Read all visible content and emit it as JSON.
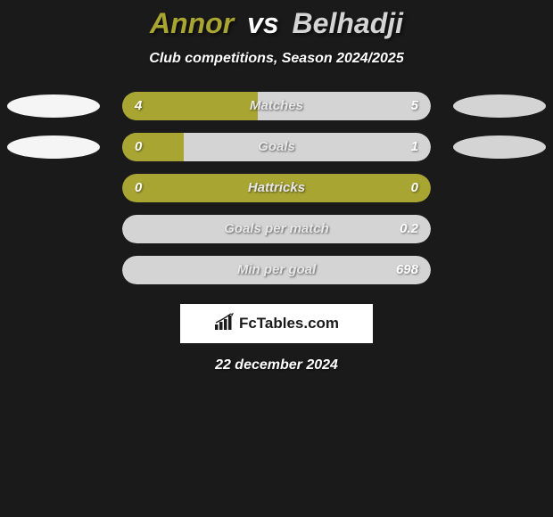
{
  "title": {
    "player1": "Annor",
    "vs": "vs",
    "player2": "Belhadji",
    "player1_color": "#a8a532",
    "player2_color": "#d4d4d4",
    "vs_color": "#ffffff"
  },
  "subtitle": "Club competitions, Season 2024/2025",
  "colors": {
    "background": "#1a1a1a",
    "p1_bar": "#a8a532",
    "p2_bar": "#d4d4d4",
    "p1_ellipse": "#f5f5f5",
    "p2_ellipse": "#d4d4d4",
    "bar_radius": 16
  },
  "stats": [
    {
      "label": "Matches",
      "left_value": "4",
      "right_value": "5",
      "left_pct": 44,
      "right_pct": 56,
      "show_left_ellipse": true,
      "show_right_ellipse": true
    },
    {
      "label": "Goals",
      "left_value": "0",
      "right_value": "1",
      "left_pct": 20,
      "right_pct": 80,
      "show_left_ellipse": true,
      "show_right_ellipse": true
    },
    {
      "label": "Hattricks",
      "left_value": "0",
      "right_value": "0",
      "left_pct": 100,
      "right_pct": 0,
      "show_left_ellipse": false,
      "show_right_ellipse": false
    },
    {
      "label": "Goals per match",
      "left_value": "",
      "right_value": "0.2",
      "left_pct": 0,
      "right_pct": 100,
      "show_left_ellipse": false,
      "show_right_ellipse": false
    },
    {
      "label": "Min per goal",
      "left_value": "",
      "right_value": "698",
      "left_pct": 0,
      "right_pct": 100,
      "show_left_ellipse": false,
      "show_right_ellipse": false
    }
  ],
  "logo": {
    "text": "FcTables.com"
  },
  "date": "22 december 2024"
}
